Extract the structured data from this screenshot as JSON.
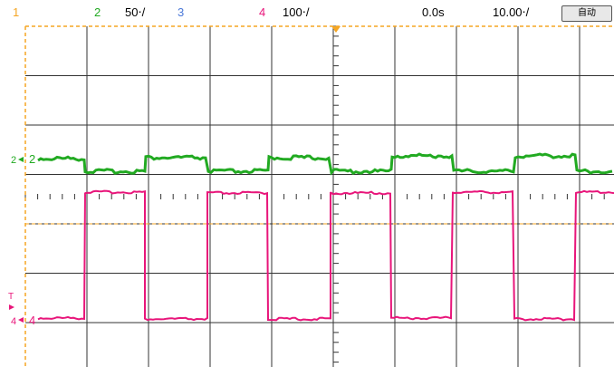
{
  "status_bar": {
    "ch1_label": "1",
    "ch2_label": "2",
    "ch2_scale": "50‧/",
    "ch3_label": "3",
    "ch4_label": "4",
    "ch4_scale": "100‧/",
    "time_offset": "0.0s",
    "time_scale": "10.00‧/",
    "run_mode_button": "自动"
  },
  "markers": {
    "ch2_marker": "2",
    "ch4_marker": "4",
    "trigger_marker": "T"
  },
  "colors": {
    "ch1": "#f5a623",
    "ch2": "#22aa22",
    "ch3": "#4a78d8",
    "ch4": "#e8157a",
    "grid": "#333333",
    "trigger_level": "#f5a623"
  },
  "signals": {
    "ch2_square_wave": {
      "description_levels": "high then low",
      "period_div": 2,
      "duty": 0.5
    },
    "ch4_square_wave": {
      "description_levels": "low then high",
      "period_div": 2,
      "duty": 0.5
    }
  }
}
